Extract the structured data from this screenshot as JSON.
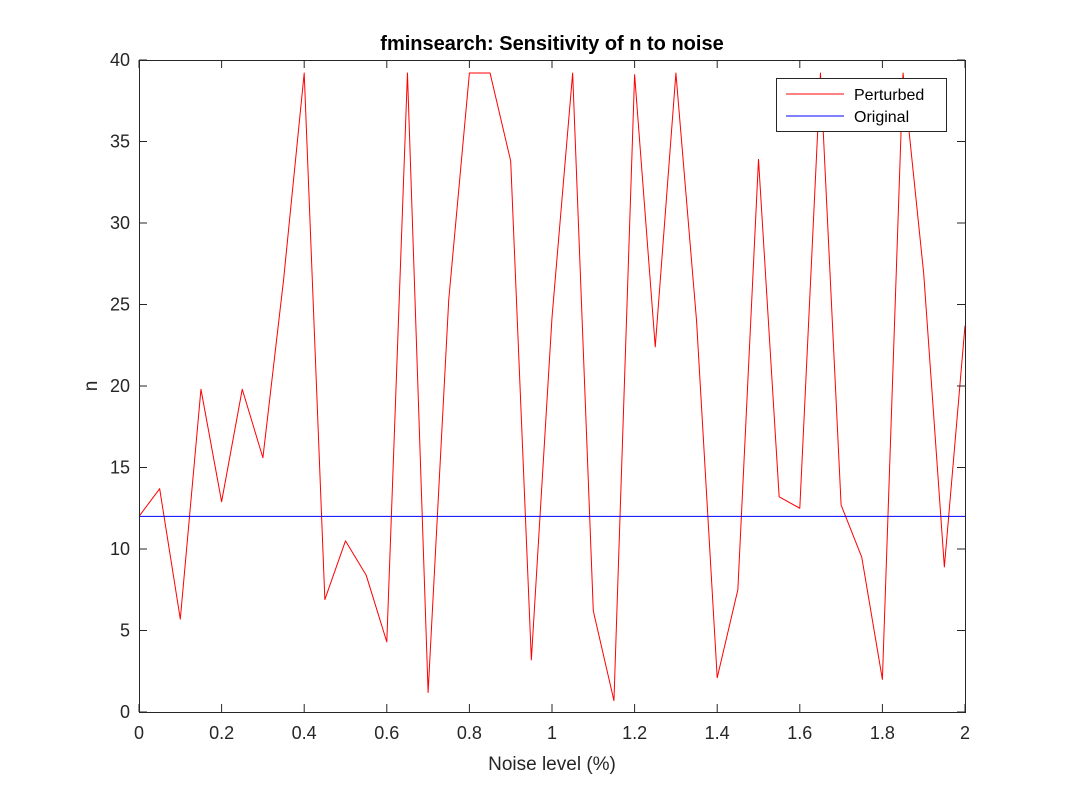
{
  "chart_data": {
    "type": "line",
    "title": "fminsearch: Sensitivity of n to noise",
    "xlabel": "Noise level (%)",
    "ylabel": "n",
    "xlim": [
      0,
      2
    ],
    "ylim": [
      0,
      40
    ],
    "xticks": [
      0,
      0.2,
      0.4,
      0.6,
      0.8,
      1,
      1.2,
      1.4,
      1.6,
      1.8,
      2
    ],
    "xtick_labels": [
      "0",
      "0.2",
      "0.4",
      "0.6",
      "0.8",
      "1",
      "1.2",
      "1.4",
      "1.6",
      "1.8",
      "2"
    ],
    "yticks": [
      0,
      5,
      10,
      15,
      20,
      25,
      30,
      35,
      40
    ],
    "ytick_labels": [
      "0",
      "5",
      "10",
      "15",
      "20",
      "25",
      "30",
      "35",
      "40"
    ],
    "grid": false,
    "legend_position": "top-right",
    "series": [
      {
        "name": "Perturbed",
        "color": "#ff0000",
        "x": [
          0,
          0.05,
          0.1,
          0.15,
          0.2,
          0.25,
          0.3,
          0.35,
          0.4,
          0.45,
          0.5,
          0.55,
          0.6,
          0.65,
          0.7,
          0.75,
          0.8,
          0.85,
          0.9,
          0.95,
          1.0,
          1.05,
          1.1,
          1.15,
          1.2,
          1.25,
          1.3,
          1.35,
          1.4,
          1.45,
          1.5,
          1.55,
          1.6,
          1.65,
          1.7,
          1.75,
          1.8,
          1.85,
          1.9,
          1.95,
          2.0
        ],
        "y": [
          12.0,
          13.7,
          5.7,
          19.8,
          12.9,
          19.8,
          15.6,
          26.5,
          39.2,
          6.9,
          10.5,
          8.4,
          4.3,
          39.2,
          1.2,
          25.3,
          39.2,
          39.2,
          33.8,
          3.2,
          24.2,
          39.2,
          6.2,
          0.7,
          39.1,
          22.4,
          39.2,
          24.0,
          2.1,
          7.5,
          33.9,
          13.2,
          12.5,
          39.2,
          12.7,
          9.5,
          2.0,
          39.2,
          26.9,
          8.9,
          23.7
        ]
      },
      {
        "name": "Original",
        "color": "#0000ff",
        "x": [
          0,
          2
        ],
        "y": [
          12.0,
          12.0
        ]
      }
    ]
  }
}
